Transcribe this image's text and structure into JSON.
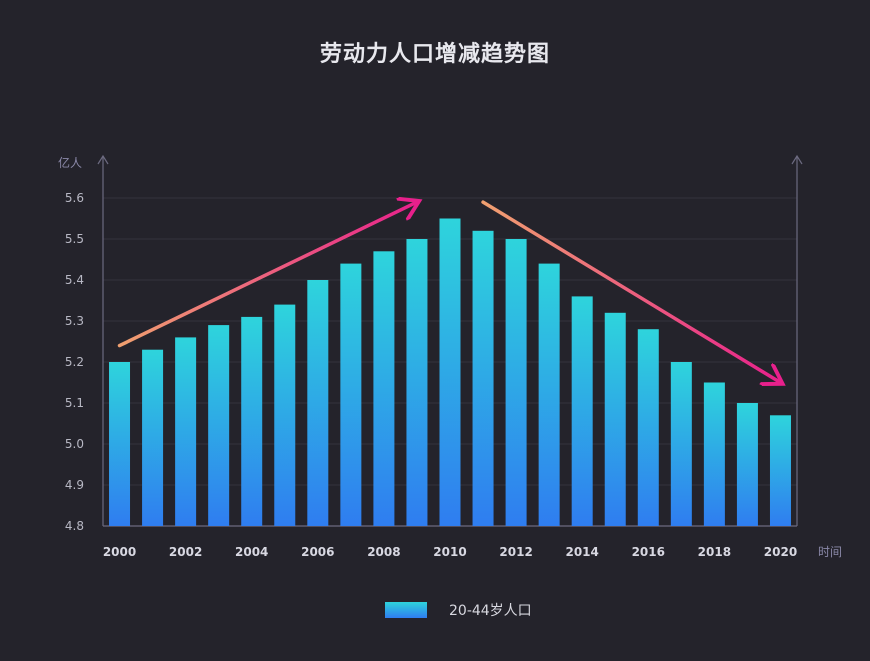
{
  "chart_data": {
    "type": "bar",
    "title": "劳动力人口增减趋势图",
    "ylabel": "亿人",
    "xlabel": "时间",
    "ylim": [
      4.8,
      5.6
    ],
    "yticks": [
      "4.8",
      "4.9",
      "5.0",
      "5.1",
      "5.2",
      "5.3",
      "5.4",
      "5.5",
      "5.6"
    ],
    "xtick_labels": [
      "2000",
      "2002",
      "2004",
      "2006",
      "2008",
      "2010",
      "2012",
      "2014",
      "2016",
      "2018",
      "2020"
    ],
    "categories": [
      "2000",
      "2001",
      "2002",
      "2003",
      "2004",
      "2005",
      "2006",
      "2007",
      "2008",
      "2009",
      "2010",
      "2011",
      "2012",
      "2013",
      "2014",
      "2015",
      "2016",
      "2017",
      "2018",
      "2019",
      "2020"
    ],
    "series": [
      {
        "name": "20-44岁人口",
        "values": [
          5.2,
          5.23,
          5.26,
          5.29,
          5.31,
          5.34,
          5.4,
          5.44,
          5.47,
          5.5,
          5.55,
          5.52,
          5.5,
          5.44,
          5.36,
          5.32,
          5.28,
          5.2,
          5.15,
          5.1,
          5.07
        ]
      }
    ],
    "grid": true,
    "legend_position": "bottom-center",
    "annotations": [
      {
        "type": "arrow",
        "from": [
          "2000",
          5.24
        ],
        "to": [
          "2009",
          5.59
        ],
        "color": "#e8407a"
      },
      {
        "type": "arrow",
        "from": [
          "2011",
          5.59
        ],
        "to": [
          "2020",
          5.15
        ],
        "color": "#e8407a"
      }
    ],
    "colors": {
      "bar_top": "#2ed4dc",
      "bar_bottom": "#2f7df0",
      "axis": "#6c6a80",
      "grid": "#34333d",
      "arrow_start": "#f0a070",
      "arrow_end": "#e8208c",
      "background": "#24232b"
    }
  }
}
